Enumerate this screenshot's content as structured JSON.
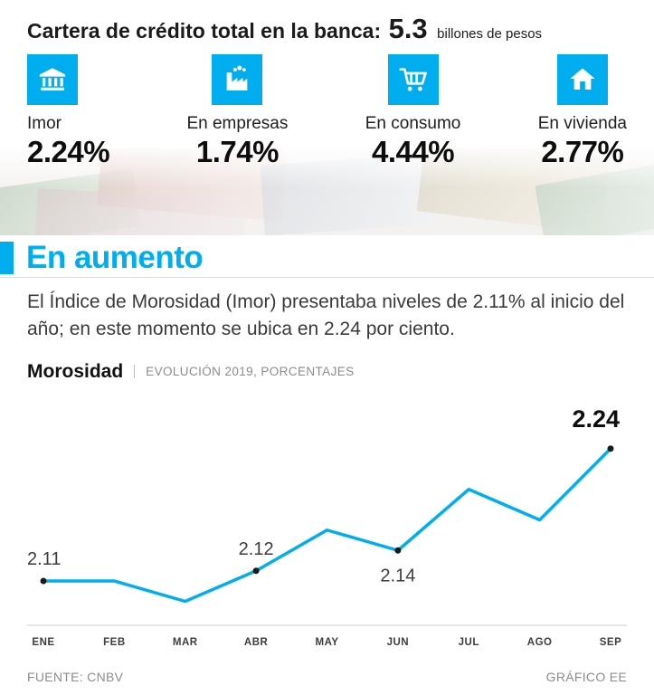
{
  "header": {
    "title": "Cartera de crédito total en la banca:",
    "amount": "5.3",
    "unit": "billones de pesos"
  },
  "stats": [
    {
      "icon": "bank-icon",
      "label": "Imor",
      "value": "2.24%"
    },
    {
      "icon": "factory-icon",
      "label": "En empresas",
      "value": "1.74%"
    },
    {
      "icon": "cart-icon",
      "label": "En consumo",
      "value": "4.44%"
    },
    {
      "icon": "house-icon",
      "label": "En vivienda",
      "value": "2.77%"
    }
  ],
  "section": {
    "title": "En aumento",
    "paragraph": "El Índice de Morosidad (Imor) presentaba niveles de 2.11% al inicio del año; en este momento se ubica en 2.24 por ciento."
  },
  "chart_header": {
    "title": "Morosidad",
    "subtitle": "EVOLUCIÓN 2019, PORCENTAJES"
  },
  "chart_data": {
    "type": "line",
    "title": "Morosidad — Evolución 2019, porcentajes",
    "categories": [
      "ENE",
      "FEB",
      "MAR",
      "ABR",
      "MAY",
      "JUN",
      "JUL",
      "AGO",
      "SEP"
    ],
    "values": [
      2.11,
      2.11,
      2.09,
      2.12,
      2.16,
      2.14,
      2.2,
      2.17,
      2.24
    ],
    "labeled_points": [
      {
        "index": 0,
        "label": "2.11",
        "position": "above",
        "emphasis": false
      },
      {
        "index": 3,
        "label": "2.12",
        "position": "above",
        "emphasis": false
      },
      {
        "index": 5,
        "label": "2.14",
        "position": "below",
        "emphasis": false
      },
      {
        "index": 8,
        "label": "2.24",
        "position": "above",
        "emphasis": true
      }
    ],
    "line_color": "#00AEEF",
    "ylim": [
      2.07,
      2.27
    ],
    "xlabel": "",
    "ylabel": "",
    "grid": false,
    "legend": "none"
  },
  "footer": {
    "source": "FUENTE: CNBV",
    "credit": "GRÁFICO EE"
  },
  "colors": {
    "accent": "#00AEEF",
    "text": "#1b1b1b",
    "muted": "#8c8c8c"
  }
}
